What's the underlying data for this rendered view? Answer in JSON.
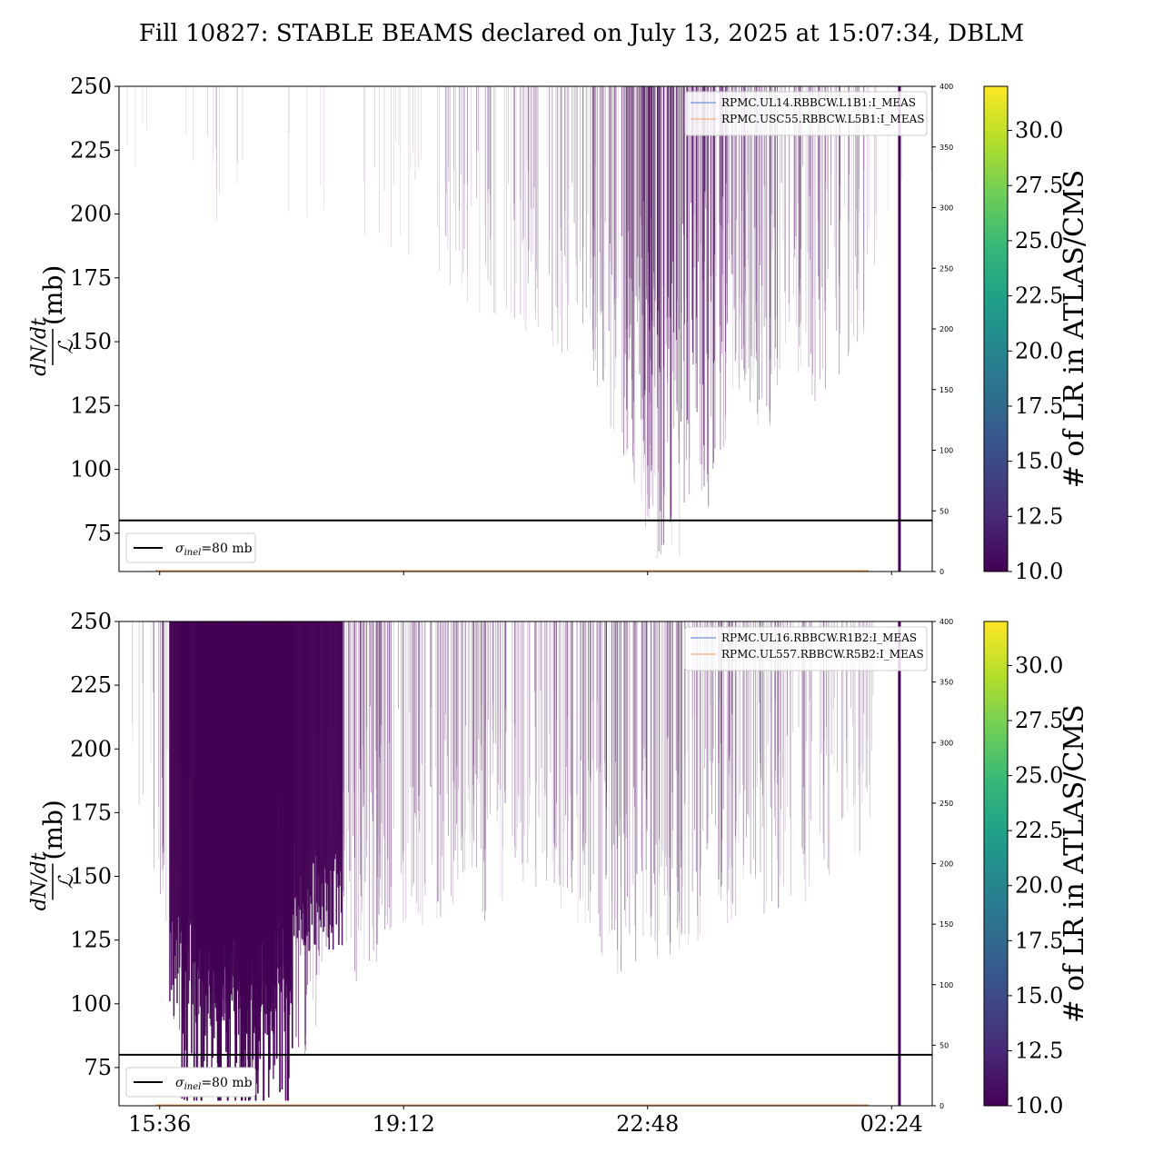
{
  "figure": {
    "title": "Fill 10827: STABLE BEAMS declared on July 13, 2025 at 15:07:34, DBLM"
  },
  "chart_data": [
    {
      "type": "heatmap",
      "panel": "top",
      "ylabel_numerator": "dN/dt",
      "ylabel_denominator": "ℒ",
      "ylabel_unit": "(mb)",
      "ylim": [
        60,
        250
      ],
      "yticks": [
        "75",
        "100",
        "125",
        "150",
        "175",
        "200",
        "225",
        "250"
      ],
      "y2lim": [
        0,
        400
      ],
      "y2ticks": [
        "0",
        "50",
        "100",
        "150",
        "200",
        "250",
        "300",
        "350",
        "400"
      ],
      "xlim": [
        "15:00",
        "03:00"
      ],
      "xticks": [],
      "reference_line": {
        "value": 80,
        "label": "σinel=80 mb",
        "sub": "inel",
        "label_value": "=80 mb"
      },
      "legend": [
        "RPMC.UL14.RBBCW.L1B1:I_MEAS",
        "RPMC.USC55.RBBCW.L5B1:I_MEAS"
      ],
      "legend_colors": [
        "#4a7fd0",
        "#f0a060"
      ],
      "colorbar": {
        "label": "# of LR in ATLAS/CMS",
        "min": 10.0,
        "max": 32.0,
        "ticks": [
          "10.0",
          "12.5",
          "15.0",
          "17.5",
          "20.0",
          "22.5",
          "25.0",
          "27.5",
          "30.0"
        ]
      },
      "density_profile": [
        [
          15.0,
          0
        ],
        [
          15.5,
          0.02
        ],
        [
          16.0,
          0.05
        ],
        [
          16.5,
          0.08
        ],
        [
          17.0,
          0.06
        ],
        [
          17.5,
          0.05
        ],
        [
          18.0,
          0.04
        ],
        [
          18.5,
          0.06
        ],
        [
          19.0,
          0.08
        ],
        [
          19.5,
          0.12
        ],
        [
          20.0,
          0.2
        ],
        [
          20.5,
          0.28
        ],
        [
          21.0,
          0.3
        ],
        [
          21.5,
          0.35
        ],
        [
          22.0,
          0.45
        ],
        [
          22.5,
          0.7
        ],
        [
          23.0,
          0.9
        ],
        [
          23.5,
          0.85
        ],
        [
          24.0,
          0.6
        ],
        [
          24.5,
          0.55
        ],
        [
          25.0,
          0.5
        ],
        [
          25.5,
          0.45
        ],
        [
          26.0,
          0.3
        ],
        [
          26.3,
          0.0
        ]
      ],
      "spike_time": "02:31"
    },
    {
      "type": "heatmap",
      "panel": "bottom",
      "ylabel_numerator": "dN/dt",
      "ylabel_denominator": "ℒ",
      "ylabel_unit": "(mb)",
      "ylim": [
        60,
        250
      ],
      "yticks": [
        "75",
        "100",
        "125",
        "150",
        "175",
        "200",
        "225",
        "250"
      ],
      "y2lim": [
        0,
        400
      ],
      "y2ticks": [
        "0",
        "50",
        "100",
        "150",
        "200",
        "250",
        "300",
        "350",
        "400"
      ],
      "xlim": [
        "15:00",
        "03:00"
      ],
      "xticks": [
        "15:36",
        "19:12",
        "22:48",
        "02:24"
      ],
      "reference_line": {
        "value": 80,
        "label": "σinel=80 mb",
        "sub": "inel",
        "label_value": "=80 mb"
      },
      "legend": [
        "RPMC.UL16.RBBCW.R1B2:I_MEAS",
        "RPMC.UL557.RBBCW.R5B2:I_MEAS"
      ],
      "legend_colors": [
        "#4a7fd0",
        "#f0a060"
      ],
      "colorbar": {
        "label": "# of LR in ATLAS/CMS",
        "min": 10.0,
        "max": 32.0,
        "ticks": [
          "10.0",
          "12.5",
          "15.0",
          "17.5",
          "20.0",
          "22.5",
          "25.0",
          "27.5",
          "30.0"
        ]
      },
      "density_profile": [
        [
          15.0,
          0
        ],
        [
          15.5,
          0.3
        ],
        [
          16.0,
          1.0
        ],
        [
          16.5,
          1.0
        ],
        [
          17.0,
          1.0
        ],
        [
          17.5,
          0.95
        ],
        [
          18.0,
          0.7
        ],
        [
          18.3,
          0.5
        ],
        [
          18.5,
          0.6
        ],
        [
          19.0,
          0.5
        ],
        [
          19.5,
          0.45
        ],
        [
          20.0,
          0.4
        ],
        [
          20.5,
          0.45
        ],
        [
          21.0,
          0.35
        ],
        [
          21.5,
          0.4
        ],
        [
          22.0,
          0.5
        ],
        [
          22.5,
          0.6
        ],
        [
          23.0,
          0.55
        ],
        [
          23.5,
          0.5
        ],
        [
          24.0,
          0.45
        ],
        [
          24.5,
          0.45
        ],
        [
          25.0,
          0.4
        ],
        [
          25.5,
          0.35
        ],
        [
          26.0,
          0.3
        ],
        [
          26.3,
          0.0
        ]
      ],
      "spike_time": "02:31"
    }
  ]
}
